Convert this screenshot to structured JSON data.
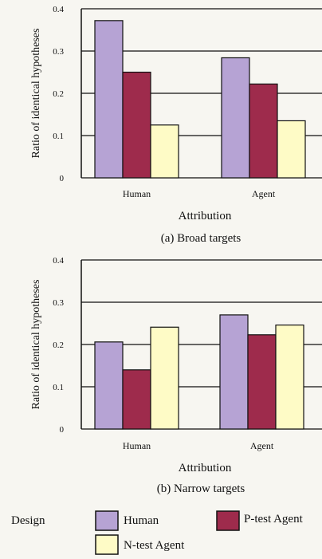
{
  "colors": {
    "human": "#b6a3d4",
    "ptest": "#9e2b4c",
    "ntest": "#fefbc6",
    "frame": "#111111",
    "background": "#f7f6f1"
  },
  "legend": {
    "title": "Design",
    "items": [
      "Human",
      "P-test Agent",
      "N-test Agent"
    ]
  },
  "chart_data": [
    {
      "type": "bar",
      "caption": "(a) Broad targets",
      "xlabel": "Attribution",
      "ylabel": "Ratio of identical hypotheses",
      "categories": [
        "Human",
        "Agent"
      ],
      "ylim": [
        0,
        0.4
      ],
      "yticks": [
        "0",
        "0.1",
        "0.2",
        "0.3",
        "0.4"
      ],
      "grid": true,
      "series": [
        {
          "name": "Human",
          "values": [
            0.372,
            0.284
          ]
        },
        {
          "name": "P-test Agent",
          "values": [
            0.25,
            0.222
          ]
        },
        {
          "name": "N-test Agent",
          "values": [
            0.125,
            0.135
          ]
        }
      ]
    },
    {
      "type": "bar",
      "caption": "(b) Narrow targets",
      "xlabel": "Attribution",
      "ylabel": "Ratio of identical hypotheses",
      "categories": [
        "Human",
        "Agent"
      ],
      "ylim": [
        0,
        0.4
      ],
      "yticks": [
        "0",
        "0.1",
        "0.2",
        "0.3",
        "0.4"
      ],
      "grid": true,
      "series": [
        {
          "name": "Human",
          "values": [
            0.206,
            0.27
          ]
        },
        {
          "name": "P-test Agent",
          "values": [
            0.14,
            0.223
          ]
        },
        {
          "name": "N-test Agent",
          "values": [
            0.241,
            0.246
          ]
        }
      ]
    }
  ]
}
